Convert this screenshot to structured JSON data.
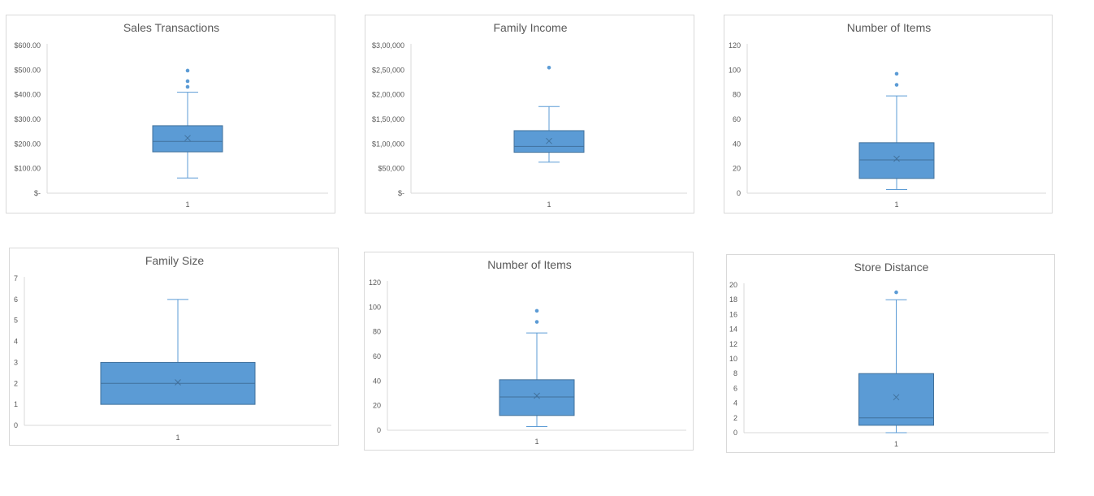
{
  "colors": {
    "box_fill": "#5b9bd5",
    "box_stroke": "#41719c",
    "whisker": "#5b9bd5",
    "outlier": "#5b9bd5",
    "mean_marker": "#41719c",
    "axis": "#d9d9d9",
    "text": "#595959",
    "border": "#d9d9d9"
  },
  "chart_data": [
    {
      "type": "boxplot",
      "title": "Sales Transactions",
      "categories": [
        "1"
      ],
      "ylim": [
        0,
        600
      ],
      "y_ticks": [
        600,
        500,
        400,
        300,
        200,
        100,
        0
      ],
      "y_tick_labels": [
        "$600.00",
        "$500.00",
        "$400.00",
        "$300.00",
        "$200.00",
        "$100.00",
        "$-"
      ],
      "series": [
        {
          "min": 62,
          "q1": 168,
          "median": 210,
          "q3": 274,
          "max": 410,
          "mean": 224,
          "outliers": [
            432,
            455,
            498
          ]
        }
      ],
      "grid": false,
      "legend": "none"
    },
    {
      "type": "boxplot",
      "title": "Family Income",
      "categories": [
        "1"
      ],
      "ylim": [
        0,
        300000
      ],
      "y_ticks": [
        300000,
        250000,
        200000,
        150000,
        100000,
        50000,
        0
      ],
      "y_tick_labels": [
        "$3,00,000",
        "$2,50,000",
        "$2,00,000",
        "$1,50,000",
        "$1,00,000",
        "$50,000",
        "$-"
      ],
      "series": [
        {
          "min": 63000,
          "q1": 83000,
          "median": 95000,
          "q3": 127000,
          "max": 176000,
          "mean": 106000,
          "outliers": [
            255000
          ]
        }
      ],
      "grid": false,
      "legend": "none"
    },
    {
      "type": "boxplot",
      "title": "Number of Items",
      "categories": [
        "1"
      ],
      "ylim": [
        0,
        120
      ],
      "y_ticks": [
        120,
        100,
        80,
        60,
        40,
        20,
        0
      ],
      "y_tick_labels": [
        "120",
        "100",
        "80",
        "60",
        "40",
        "20",
        "0"
      ],
      "series": [
        {
          "min": 3,
          "q1": 12,
          "median": 27,
          "q3": 41,
          "max": 79,
          "mean": 28,
          "outliers": [
            88,
            97
          ]
        }
      ],
      "grid": false,
      "legend": "none"
    },
    {
      "type": "boxplot",
      "title": "Family Size",
      "categories": [
        "1"
      ],
      "ylim": [
        0,
        7
      ],
      "y_ticks": [
        7,
        6,
        5,
        4,
        3,
        2,
        1,
        0
      ],
      "y_tick_labels": [
        "7",
        "6",
        "5",
        "4",
        "3",
        "2",
        "1",
        "0"
      ],
      "series": [
        {
          "min": 1,
          "q1": 1,
          "median": 2,
          "q3": 3,
          "max": 6,
          "mean": 2.05,
          "outliers": []
        }
      ],
      "grid": false,
      "legend": "none"
    },
    {
      "type": "boxplot",
      "title": "Number of Items",
      "categories": [
        "1"
      ],
      "ylim": [
        0,
        120
      ],
      "y_ticks": [
        120,
        100,
        80,
        60,
        40,
        20,
        0
      ],
      "y_tick_labels": [
        "120",
        "100",
        "80",
        "60",
        "40",
        "20",
        "0"
      ],
      "series": [
        {
          "min": 3,
          "q1": 12,
          "median": 27,
          "q3": 41,
          "max": 79,
          "mean": 28,
          "outliers": [
            88,
            97
          ]
        }
      ],
      "grid": false,
      "legend": "none"
    },
    {
      "type": "boxplot",
      "title": "Store Distance",
      "categories": [
        "1"
      ],
      "ylim": [
        0,
        20
      ],
      "y_ticks": [
        20,
        18,
        16,
        14,
        12,
        10,
        8,
        6,
        4,
        2,
        0
      ],
      "y_tick_labels": [
        "20",
        "18",
        "16",
        "14",
        "12",
        "10",
        "8",
        "6",
        "4",
        "2",
        "0"
      ],
      "series": [
        {
          "min": 0,
          "q1": 1,
          "median": 2,
          "q3": 8,
          "max": 18,
          "mean": 4.8,
          "outliers": [
            19
          ]
        }
      ],
      "grid": false,
      "legend": "none"
    }
  ]
}
